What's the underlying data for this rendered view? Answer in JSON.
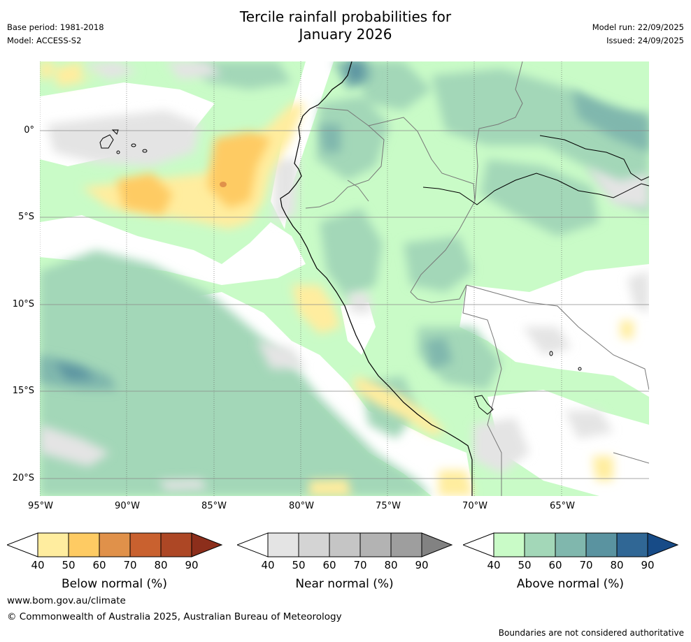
{
  "title": {
    "line1": "Tercile rainfall probabilities for",
    "line2": "January 2026"
  },
  "header_left": {
    "base_period": "Base period: 1981-2018",
    "model": "Model: ACCESS-S2"
  },
  "header_right": {
    "model_run": "Model run: 22/09/2025",
    "issued": "Issued: 24/09/2025"
  },
  "map": {
    "lon_ticks": [
      "95°W",
      "90°W",
      "85°W",
      "80°W",
      "75°W",
      "70°W",
      "65°W"
    ],
    "lat_ticks": [
      "0°",
      "5°S",
      "10°S",
      "15°S",
      "20°S"
    ],
    "extent": {
      "lon": [
        -95,
        -60
      ],
      "lat": [
        -21,
        4
      ]
    }
  },
  "colorbars": [
    {
      "label": "Below normal (%)",
      "ticks": [
        "40",
        "50",
        "60",
        "70",
        "80",
        "90"
      ],
      "colors": [
        "#ffed9f",
        "#fecb63",
        "#e0914a",
        "#c9612f",
        "#ad4725",
        "#8c2e1b"
      ]
    },
    {
      "label": "Near normal (%)",
      "ticks": [
        "40",
        "50",
        "60",
        "70",
        "80",
        "90"
      ],
      "colors": [
        "#e4e4e4",
        "#d4d4d4",
        "#c5c5c5",
        "#b3b3b3",
        "#9e9e9e",
        "#828282"
      ]
    },
    {
      "label": "Above normal (%)",
      "ticks": [
        "40",
        "50",
        "60",
        "70",
        "80",
        "90"
      ],
      "colors": [
        "#c9fbc7",
        "#a3d7b8",
        "#80b7ad",
        "#5a93a0",
        "#306795",
        "#174b87"
      ]
    }
  ],
  "footer": {
    "url": "www.bom.gov.au/climate",
    "copyright": "© Commonwealth of Australia 2025, Australian Bureau of Meteorology",
    "disclaimer": "Boundaries are not considered authoritative"
  }
}
